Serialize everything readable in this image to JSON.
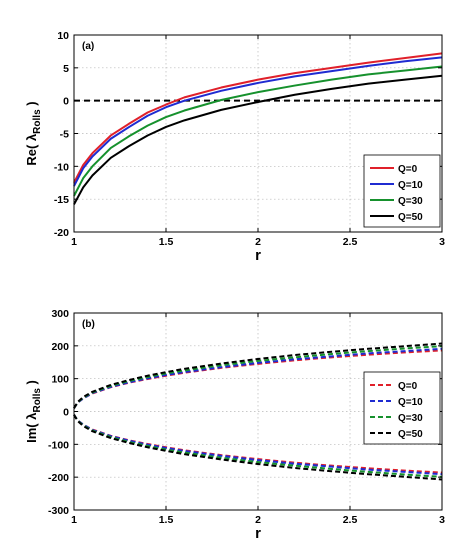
{
  "chart_data": [
    {
      "type": "line",
      "panel_label": "(a)",
      "ylabel": "Re( λ",
      "ylabel_sub": "Rolls",
      "ylabel_close": " )",
      "xlabel": "r",
      "xlim": [
        1,
        3
      ],
      "ylim": [
        -20,
        10
      ],
      "xticks": [
        1,
        1.5,
        2,
        2.5,
        3
      ],
      "xtick_labels": [
        "1",
        "1.5",
        "2",
        "2.5",
        "3"
      ],
      "yticks": [
        -20,
        -15,
        -10,
        -5,
        0,
        5,
        10
      ],
      "ytick_labels": [
        "-20",
        "-15",
        "-10",
        "-5",
        "0",
        "5",
        "10"
      ],
      "grid": true,
      "legend_position": "lower-right",
      "reference_line": {
        "y": 0,
        "style": "dashed",
        "color": "#000000"
      },
      "series": [
        {
          "name": "Q=0",
          "color": "#e0202a",
          "style": "solid",
          "x": [
            1.0,
            1.05,
            1.1,
            1.2,
            1.3,
            1.4,
            1.5,
            1.6,
            1.8,
            2.0,
            2.2,
            2.4,
            2.6,
            2.8,
            3.0
          ],
          "y": [
            -12.5,
            -9.8,
            -8.0,
            -5.3,
            -3.5,
            -1.8,
            -0.6,
            0.5,
            2.0,
            3.2,
            4.2,
            5.0,
            5.8,
            6.5,
            7.2
          ]
        },
        {
          "name": "Q=10",
          "color": "#1f2bd1",
          "style": "solid",
          "x": [
            1.0,
            1.05,
            1.1,
            1.2,
            1.3,
            1.4,
            1.5,
            1.6,
            1.8,
            2.0,
            2.2,
            2.4,
            2.6,
            2.8,
            3.0
          ],
          "y": [
            -13.0,
            -10.3,
            -8.5,
            -5.8,
            -4.0,
            -2.3,
            -1.0,
            0.0,
            1.5,
            2.7,
            3.7,
            4.5,
            5.3,
            6.0,
            6.6
          ]
        },
        {
          "name": "Q=30",
          "color": "#16912d",
          "style": "solid",
          "x": [
            1.0,
            1.05,
            1.1,
            1.2,
            1.3,
            1.4,
            1.5,
            1.6,
            1.8,
            2.0,
            2.2,
            2.4,
            2.6,
            2.8,
            3.0
          ],
          "y": [
            -14.5,
            -11.8,
            -10.0,
            -7.2,
            -5.4,
            -3.8,
            -2.5,
            -1.5,
            0.1,
            1.3,
            2.3,
            3.2,
            4.0,
            4.6,
            5.2
          ]
        },
        {
          "name": "Q=50",
          "color": "#000000",
          "style": "solid",
          "x": [
            1.0,
            1.05,
            1.1,
            1.2,
            1.3,
            1.4,
            1.5,
            1.6,
            1.8,
            2.0,
            2.2,
            2.4,
            2.6,
            2.8,
            3.0
          ],
          "y": [
            -15.8,
            -13.2,
            -11.4,
            -8.7,
            -6.9,
            -5.3,
            -4.0,
            -3.0,
            -1.4,
            -0.2,
            0.9,
            1.8,
            2.6,
            3.2,
            3.8
          ]
        }
      ]
    },
    {
      "type": "line",
      "panel_label": "(b)",
      "ylabel": "Im( λ",
      "ylabel_sub": "Rolls",
      "ylabel_close": " )",
      "xlabel": "r",
      "xlim": [
        1,
        3
      ],
      "ylim": [
        -300,
        300
      ],
      "xticks": [
        1,
        1.5,
        2,
        2.5,
        3
      ],
      "xtick_labels": [
        "1",
        "1.5",
        "2",
        "2.5",
        "3"
      ],
      "yticks": [
        -300,
        -200,
        -100,
        0,
        100,
        200,
        300
      ],
      "ytick_labels": [
        "-300",
        "-200",
        "-100",
        "0",
        "100",
        "200",
        "300"
      ],
      "grid": true,
      "legend_position": "right",
      "series": [
        {
          "name": "Q=0",
          "color": "#e0202a",
          "style": "dashed",
          "x": [
            1.0,
            1.02,
            1.05,
            1.1,
            1.2,
            1.3,
            1.4,
            1.5,
            1.6,
            1.8,
            2.0,
            2.2,
            2.4,
            2.6,
            2.8,
            3.0
          ],
          "y": [
            10,
            27,
            40,
            55,
            74,
            88,
            99,
            109,
            118,
            133,
            145,
            156,
            165,
            173,
            180,
            186
          ]
        },
        {
          "name": "Q=10",
          "color": "#1f2bd1",
          "style": "dashed",
          "x": [
            1.0,
            1.02,
            1.05,
            1.1,
            1.2,
            1.3,
            1.4,
            1.5,
            1.6,
            1.8,
            2.0,
            2.2,
            2.4,
            2.6,
            2.8,
            3.0
          ],
          "y": [
            10,
            27,
            40,
            56,
            75,
            89,
            101,
            111,
            120,
            135,
            148,
            159,
            168,
            177,
            184,
            191
          ]
        },
        {
          "name": "Q=30",
          "color": "#16912d",
          "style": "dashed",
          "x": [
            1.0,
            1.02,
            1.05,
            1.1,
            1.2,
            1.3,
            1.4,
            1.5,
            1.6,
            1.8,
            2.0,
            2.2,
            2.4,
            2.6,
            2.8,
            3.0
          ],
          "y": [
            10,
            28,
            42,
            58,
            78,
            93,
            105,
            116,
            125,
            141,
            154,
            165,
            175,
            184,
            192,
            199
          ]
        },
        {
          "name": "Q=50",
          "color": "#000000",
          "style": "dashed",
          "x": [
            1.0,
            1.02,
            1.05,
            1.1,
            1.2,
            1.3,
            1.4,
            1.5,
            1.6,
            1.8,
            2.0,
            2.2,
            2.4,
            2.6,
            2.8,
            3.0
          ],
          "y": [
            10,
            29,
            44,
            60,
            81,
            96,
            109,
            120,
            130,
            146,
            160,
            172,
            182,
            191,
            199,
            207
          ]
        }
      ]
    }
  ]
}
